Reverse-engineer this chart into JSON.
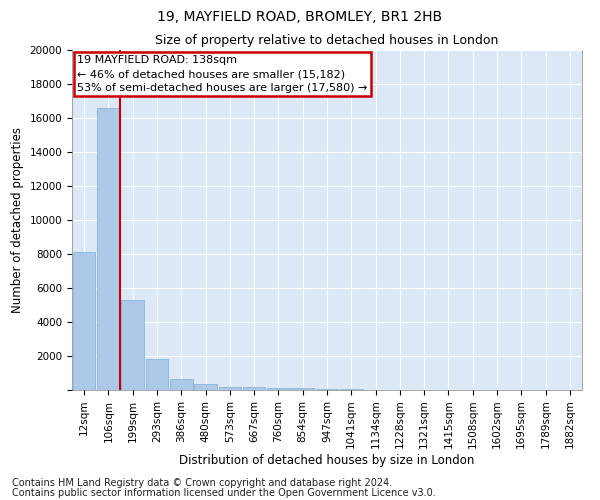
{
  "title1": "19, MAYFIELD ROAD, BROMLEY, BR1 2HB",
  "title2": "Size of property relative to detached houses in London",
  "xlabel": "Distribution of detached houses by size in London",
  "ylabel": "Number of detached properties",
  "footnote1": "Contains HM Land Registry data © Crown copyright and database right 2024.",
  "footnote2": "Contains public sector information licensed under the Open Government Licence v3.0.",
  "annotation_title": "19 MAYFIELD ROAD: 138sqm",
  "annotation_line1": "← 46% of detached houses are smaller (15,182)",
  "annotation_line2": "53% of semi-detached houses are larger (17,580) →",
  "bar_color": "#adc9e8",
  "bar_edge_color": "#7aafd4",
  "annotation_box_edgecolor": "#cc0000",
  "vline_color": "#cc0000",
  "categories": [
    "12sqm",
    "106sqm",
    "199sqm",
    "293sqm",
    "386sqm",
    "480sqm",
    "573sqm",
    "667sqm",
    "760sqm",
    "854sqm",
    "947sqm",
    "1041sqm",
    "1134sqm",
    "1228sqm",
    "1321sqm",
    "1415sqm",
    "1508sqm",
    "1602sqm",
    "1695sqm",
    "1789sqm",
    "1882sqm"
  ],
  "values": [
    8100,
    16600,
    5300,
    1800,
    650,
    330,
    190,
    155,
    130,
    115,
    60,
    40,
    0,
    0,
    0,
    0,
    0,
    0,
    0,
    0,
    0
  ],
  "ylim": [
    0,
    20000
  ],
  "yticks": [
    0,
    2000,
    4000,
    6000,
    8000,
    10000,
    12000,
    14000,
    16000,
    18000,
    20000
  ],
  "background_color": "#dce8f5",
  "grid_color": "#ffffff",
  "title1_fontsize": 10,
  "title2_fontsize": 9,
  "axis_label_fontsize": 8.5,
  "tick_fontsize": 7.5,
  "footnote_fontsize": 7,
  "annotation_fontsize": 8,
  "vline_x": 1.46
}
